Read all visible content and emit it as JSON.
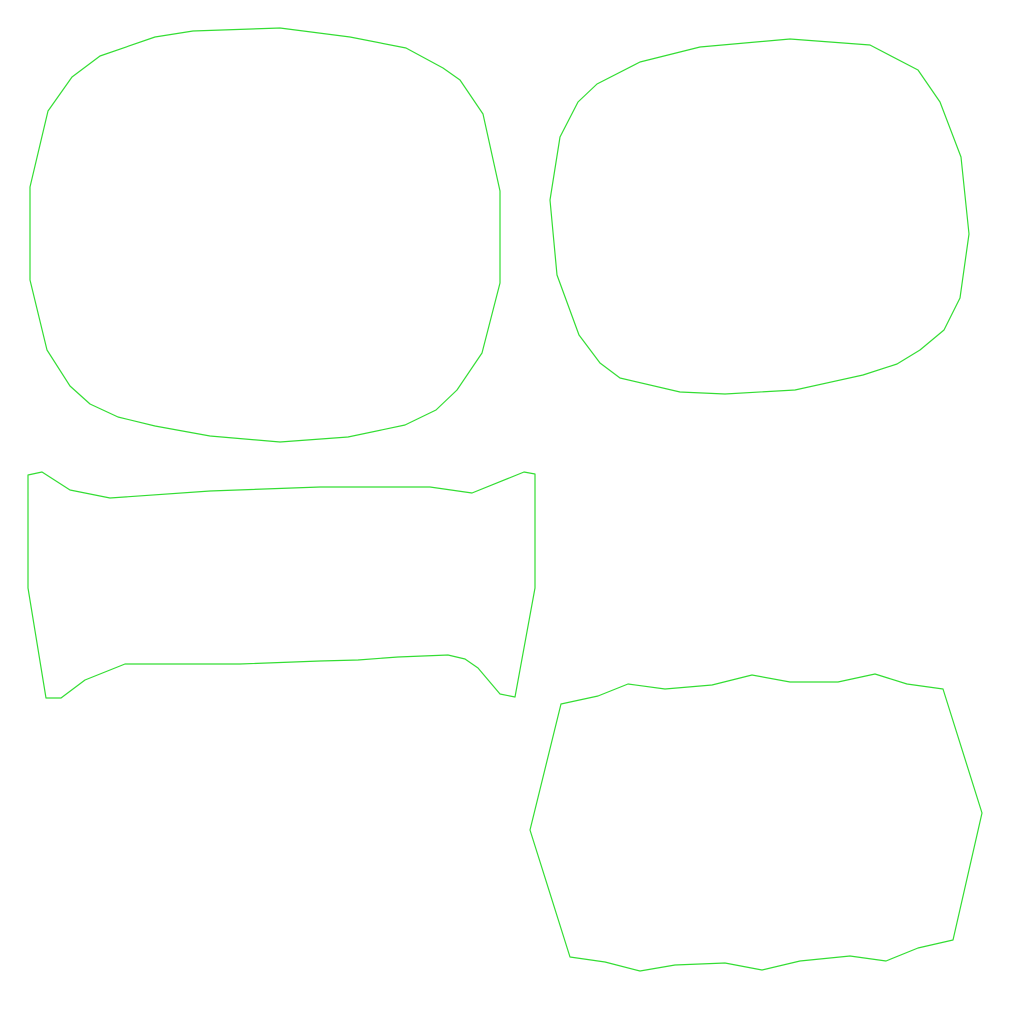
{
  "colors": {
    "background": "#ffffff",
    "outline": "#33dd33"
  },
  "shapes": [
    {
      "kind": "rounded-square-outline"
    },
    {
      "kind": "rounded-square-outline"
    },
    {
      "kind": "concave-band-outline"
    },
    {
      "kind": "wavy-hexagon-outline"
    }
  ]
}
